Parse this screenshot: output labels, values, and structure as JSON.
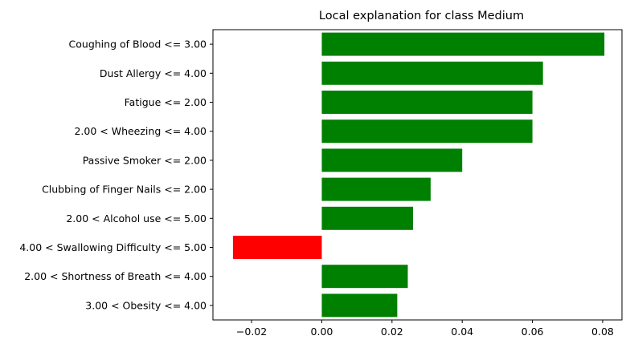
{
  "chart_data": {
    "type": "bar",
    "orientation": "horizontal",
    "title": "Local explanation for class Medium",
    "xlabel": "",
    "ylabel": "",
    "xlim": [
      -0.031,
      0.0855
    ],
    "xticks": [
      -0.02,
      0.0,
      0.02,
      0.04,
      0.06,
      0.08
    ],
    "xtick_labels": [
      "−0.02",
      "0.00",
      "0.02",
      "0.04",
      "0.06",
      "0.08"
    ],
    "grid": false,
    "legend": "none",
    "categories": [
      "Coughing of Blood <= 3.00",
      "Dust Allergy <= 4.00",
      "Fatigue <= 2.00",
      "2.00 < Wheezing <= 4.00",
      "Passive Smoker <= 2.00",
      "Clubbing of Finger Nails <= 2.00",
      "2.00 < Alcohol use <= 5.00",
      "4.00 < Swallowing Difficulty <= 5.00",
      "2.00 < Shortness of Breath <= 4.00",
      "3.00 < Obesity <= 4.00"
    ],
    "values": [
      0.0805,
      0.063,
      0.06,
      0.06,
      0.04,
      0.031,
      0.026,
      -0.0253,
      0.0245,
      0.0215
    ],
    "colors": {
      "positive": "#008000",
      "negative": "#ff0000"
    }
  }
}
